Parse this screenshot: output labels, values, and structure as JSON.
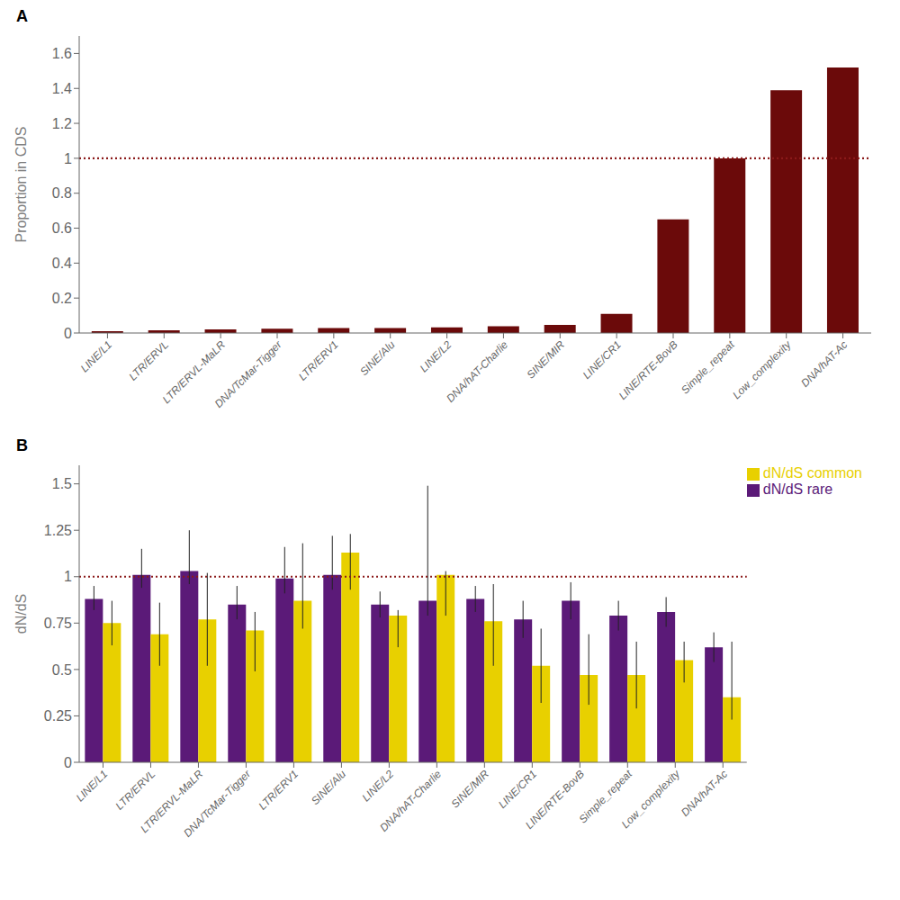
{
  "chart_data": [
    {
      "type": "bar",
      "title": "A",
      "categories": [
        "LINE/L1",
        "LTR/ERVL",
        "LTR/ERVL-MaLR",
        "DNA/TcMar-Tigger",
        "LTR/ERV1",
        "SINE/Alu",
        "LINE/L2",
        "DNA/hAT-Charlie",
        "SINE/MIR",
        "LINE/CR1",
        "LINE/RTE-BovB",
        "Simple_repeat",
        "Low_complexity",
        "DNA/hAT-Ac"
      ],
      "values": [
        0.01,
        0.015,
        0.02,
        0.025,
        0.028,
        0.028,
        0.032,
        0.038,
        0.047,
        0.11,
        0.65,
        1.0,
        1.39,
        1.52
      ],
      "color": "#6b0a0a",
      "ylabel": "Proportion in CDS",
      "ylim": [
        0,
        1.7
      ],
      "yticks": [
        0,
        0.2,
        0.4,
        0.6,
        0.8,
        1,
        1.2,
        1.4,
        1.6
      ],
      "reference_line": {
        "value": 1.0,
        "color": "#8b1a1a",
        "line_style": "dotted"
      }
    },
    {
      "type": "bar",
      "title": "B",
      "categories": [
        "LINE/L1",
        "LTR/ERVL",
        "LTR/ERVL-MaLR",
        "DNA/TcMar-Tigger",
        "LTR/ERV1",
        "SINE/Alu",
        "LINE/L2",
        "DNA/hAT-Charlie",
        "SINE/MIR",
        "LINE/CR1",
        "LINE/RTE-BovB",
        "Simple_repeat",
        "Low_complexity",
        "DNA/hAT-Ac"
      ],
      "series": [
        {
          "name": "dN/dS rare",
          "color": "#5b1a78",
          "values": [
            0.88,
            1.01,
            1.03,
            0.85,
            0.99,
            1.01,
            0.85,
            0.87,
            0.88,
            0.77,
            0.87,
            0.79,
            0.81,
            0.62
          ],
          "error_low": [
            0.06,
            0.07,
            0.07,
            0.08,
            0.08,
            0.08,
            0.07,
            0.08,
            0.07,
            0.1,
            0.1,
            0.08,
            0.08,
            0.08
          ],
          "error_high": [
            0.07,
            0.14,
            0.22,
            0.1,
            0.17,
            0.21,
            0.07,
            0.62,
            0.07,
            0.1,
            0.1,
            0.08,
            0.08,
            0.08
          ]
        },
        {
          "name": "dN/dS common",
          "color": "#e8d000",
          "values": [
            0.75,
            0.69,
            0.77,
            0.71,
            0.87,
            1.13,
            0.79,
            1.01,
            0.76,
            0.52,
            0.47,
            0.47,
            0.55,
            0.35
          ],
          "error_low": [
            0.12,
            0.17,
            0.25,
            0.22,
            0.15,
            0.2,
            0.17,
            0.22,
            0.24,
            0.2,
            0.16,
            0.18,
            0.12,
            0.12
          ],
          "error_high": [
            0.12,
            0.17,
            0.25,
            0.1,
            0.31,
            0.1,
            0.03,
            0.02,
            0.2,
            0.2,
            0.22,
            0.18,
            0.1,
            0.3
          ]
        }
      ],
      "ylabel": "dN/dS",
      "ylim": [
        0,
        1.6
      ],
      "yticks": [
        0,
        0.25,
        0.5,
        0.75,
        1,
        1.25,
        1.5
      ],
      "legend": "upper right",
      "reference_line": {
        "value": 1.0,
        "color": "#8b1a1a",
        "line_style": "dotted"
      }
    }
  ]
}
